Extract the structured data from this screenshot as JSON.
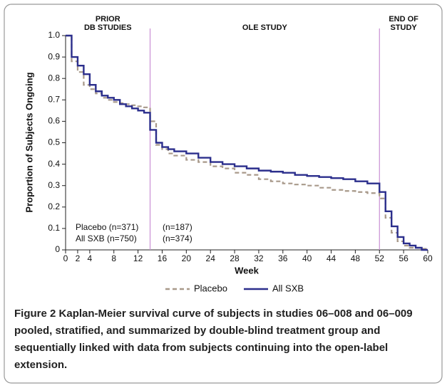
{
  "chart_data": {
    "type": "step",
    "ylabel": "Proportion of Subjects Ongoing",
    "xlabel": "Week",
    "x": [
      0,
      1,
      2,
      3,
      4,
      5,
      6,
      7,
      8,
      9,
      10,
      11,
      12,
      13,
      14,
      15,
      16,
      17,
      18,
      20,
      22,
      24,
      26,
      28,
      30,
      32,
      34,
      36,
      38,
      40,
      42,
      44,
      46,
      48,
      50,
      52,
      53,
      54,
      55,
      56,
      57,
      58,
      59,
      60
    ],
    "series": [
      {
        "name": "Placebo",
        "color": "#a8998a",
        "dashed": true,
        "values": [
          1.0,
          0.88,
          0.83,
          0.77,
          0.75,
          0.73,
          0.71,
          0.7,
          0.69,
          0.685,
          0.68,
          0.675,
          0.67,
          0.665,
          0.6,
          0.49,
          0.47,
          0.45,
          0.44,
          0.42,
          0.41,
          0.39,
          0.38,
          0.36,
          0.35,
          0.33,
          0.32,
          0.31,
          0.305,
          0.3,
          0.29,
          0.28,
          0.275,
          0.27,
          0.265,
          0.24,
          0.15,
          0.08,
          0.04,
          0.02,
          0.01,
          0.01,
          0.005,
          0.0
        ]
      },
      {
        "name": "All SXB",
        "color": "#2b2e8c",
        "dashed": false,
        "values": [
          1.0,
          0.9,
          0.86,
          0.82,
          0.77,
          0.74,
          0.72,
          0.71,
          0.7,
          0.68,
          0.67,
          0.66,
          0.65,
          0.64,
          0.56,
          0.5,
          0.48,
          0.47,
          0.46,
          0.45,
          0.43,
          0.41,
          0.4,
          0.39,
          0.38,
          0.37,
          0.365,
          0.36,
          0.35,
          0.345,
          0.34,
          0.335,
          0.33,
          0.32,
          0.31,
          0.27,
          0.18,
          0.11,
          0.06,
          0.03,
          0.02,
          0.01,
          0.0,
          0.0
        ]
      }
    ],
    "xlim": [
      0,
      60
    ],
    "xticks": [
      0,
      2,
      4,
      8,
      12,
      16,
      20,
      24,
      28,
      32,
      36,
      40,
      44,
      48,
      52,
      56,
      60
    ],
    "ylim": [
      0,
      1
    ],
    "yticks": [
      0,
      0.1,
      0.2,
      0.3,
      0.4,
      0.5,
      0.6,
      0.7,
      0.8,
      0.9,
      {
        "value": 1,
        "label": "1.0"
      }
    ],
    "reference_lines": [
      14,
      52
    ],
    "region_labels": [
      [
        "PRIOR",
        "DB STUDIES"
      ],
      [
        "OLE STUDY"
      ],
      [
        "END OF",
        "STUDY"
      ]
    ],
    "annotations": [
      [
        "Placebo (n=371)",
        "All SXB (n=750)"
      ],
      [
        "(n=187)",
        "(n=374)"
      ]
    ],
    "caption": {
      "label": "Figure 2",
      "text": "Kaplan-Meier survival curve of subjects in studies 06–008 and 06–009 pooled, stratified, and summarized by double-blind treatment group and sequentially linked with data from subjects continuing into the open-label extension."
    }
  }
}
